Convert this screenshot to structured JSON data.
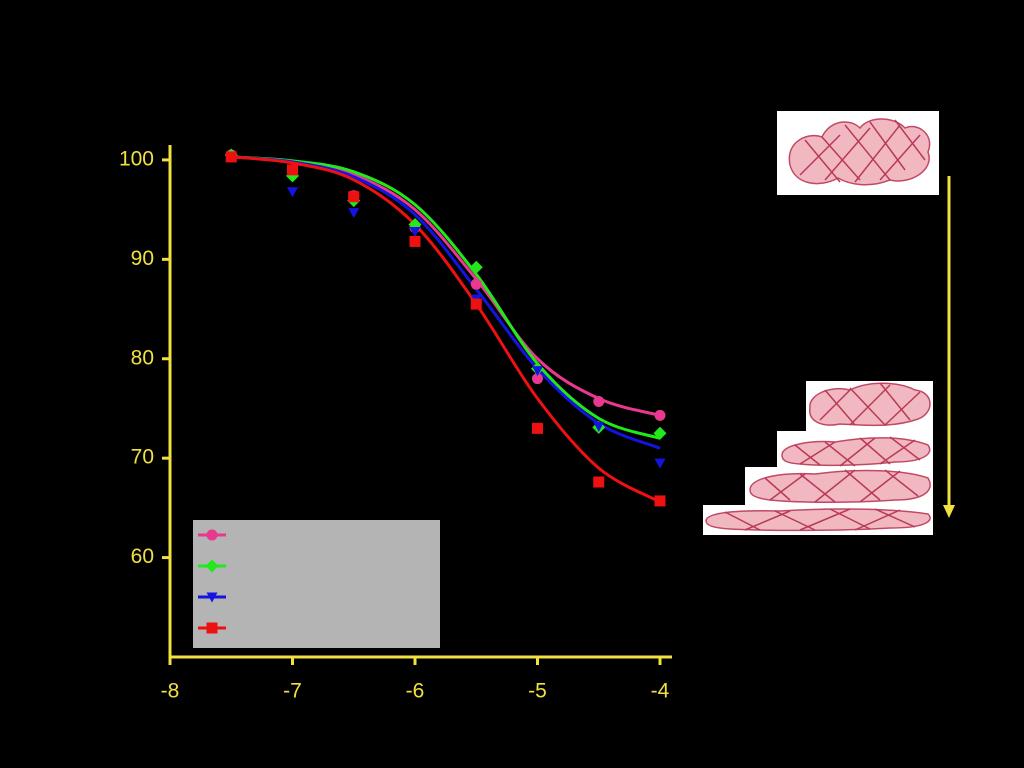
{
  "chart_data": {
    "type": "line",
    "x": [
      -7.5,
      -7,
      -6.5,
      -6,
      -5.5,
      -5,
      -4.5,
      -4
    ],
    "series": [
      {
        "color": "#e8388f",
        "marker": "circle",
        "values": [
          100.5,
          99.0,
          96.4,
          93.2,
          87.5,
          78.0,
          75.7,
          74.3
        ],
        "fit_values": [
          100.3,
          99.8,
          98.5,
          95.0,
          88.0,
          80.0,
          76.0,
          74.3
        ]
      },
      {
        "color": "#22e81c",
        "marker": "diamond",
        "values": [
          100.5,
          98.4,
          95.9,
          93.5,
          89.2,
          79.0,
          73.1,
          72.5
        ],
        "fit_values": [
          100.3,
          99.9,
          98.8,
          95.5,
          88.5,
          79.5,
          74.0,
          72.0
        ]
      },
      {
        "color": "#1414e0",
        "marker": "triangle-down",
        "values": [
          100.3,
          96.8,
          94.7,
          92.8,
          86.0,
          78.8,
          73.2,
          69.5
        ],
        "fit_values": [
          100.3,
          99.8,
          98.3,
          94.5,
          87.0,
          79.0,
          73.5,
          71.0
        ]
      },
      {
        "color": "#ee1111",
        "marker": "square",
        "values": [
          100.3,
          99.0,
          96.3,
          91.8,
          85.5,
          73.0,
          67.6,
          65.7
        ],
        "fit_values": [
          100.3,
          99.7,
          98.0,
          93.5,
          85.5,
          76.0,
          69.0,
          65.6
        ]
      }
    ],
    "xlim": [
      -8,
      -4
    ],
    "xticks": [
      -8,
      -7,
      -6,
      -5,
      -4
    ],
    "ylim": [
      50,
      101.5
    ],
    "yticks": [
      60,
      70,
      80,
      90,
      100
    ],
    "axis_color": "#f0e040",
    "grid": false
  }
}
